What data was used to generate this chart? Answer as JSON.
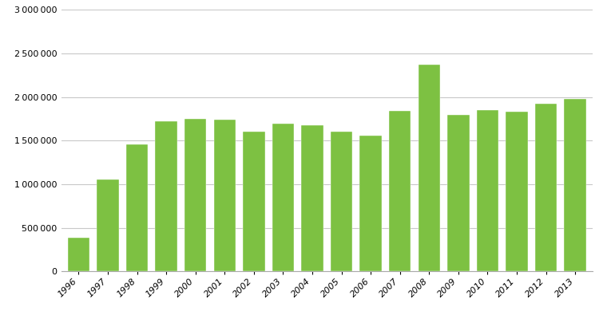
{
  "years": [
    "1996",
    "1997",
    "1998",
    "1999",
    "2000",
    "2001",
    "2002",
    "2003",
    "2004",
    "2005",
    "2006",
    "2007",
    "2008",
    "2009",
    "2010",
    "2011",
    "2012",
    "2013"
  ],
  "values": [
    390000,
    1055000,
    1455000,
    1725000,
    1755000,
    1745000,
    1600000,
    1695000,
    1680000,
    1600000,
    1555000,
    1845000,
    2375000,
    1800000,
    1850000,
    1835000,
    1920000,
    1975000
  ],
  "bar_color": "#7dc142",
  "bg_color": "#ffffff",
  "ylim": [
    0,
    3000000
  ],
  "yticks": [
    0,
    500000,
    1000000,
    1500000,
    2000000,
    2500000,
    3000000
  ],
  "grid_color": "#c8c8c8",
  "figsize": [
    7.65,
    4.15
  ],
  "dpi": 100
}
